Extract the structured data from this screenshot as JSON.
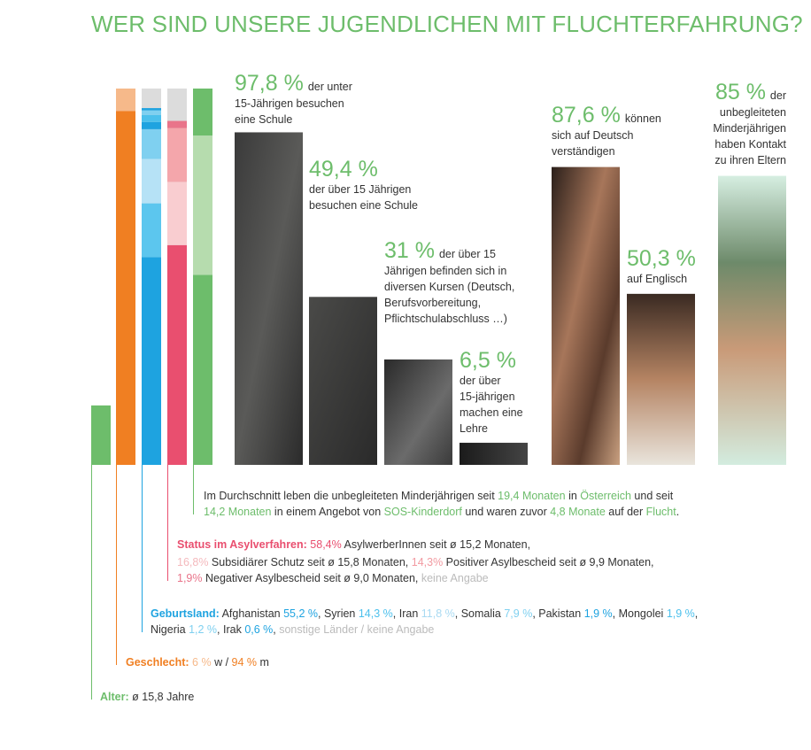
{
  "title": "WER SIND UNSERE JUGENDLICHEN MIT FLUCHTERFAHRUNG?",
  "facts": [
    {
      "value": 97.8,
      "label": "97,8 %",
      "text": "der unter",
      "lines": [
        "15-Jährigen besuchen",
        "eine Schule"
      ]
    },
    {
      "value": 49.4,
      "label": "49,4 %",
      "lines": [
        "der über 15 Jährigen",
        "besuchen eine Schule"
      ]
    },
    {
      "value": 31,
      "label": "31 %",
      "text": "der über 15",
      "lines": [
        "Jährigen befinden sich in",
        "diversen Kursen (Deutsch,",
        "Berufsvorbereitung,",
        "Pflichtschulabschluss …)"
      ]
    },
    {
      "value": 6.5,
      "label": "6,5 %",
      "lines": [
        "der über",
        "15-jährigen",
        "machen eine",
        "Lehre"
      ]
    },
    {
      "value": 87.6,
      "label": "87,6 %",
      "text": "können",
      "lines": [
        "sich auf Deutsch",
        "verständigen"
      ]
    },
    {
      "value": 50.3,
      "label": "50,3 %",
      "lines": [
        "auf Englisch"
      ]
    },
    {
      "value": 85,
      "label": "85 %",
      "text": "der",
      "lines": [
        "unbegleiteten",
        "Minderjährigen",
        "haben Kontakt",
        "zu ihren Eltern"
      ]
    }
  ],
  "blocks": {
    "durchschnitt": {
      "color": "#6dbd6b",
      "lines": [
        [
          "Im Durchschnitt leben die unbegleiteten Minderjährigen seit ",
          {
            "label": "19,4 Monaten",
            "value": 19.4,
            "color": "#6dbd6b"
          },
          " in ",
          {
            "text": "Österreich",
            "color": "#6dbd6b"
          },
          " und seit"
        ],
        [
          {
            "label": "14,2 Monaten",
            "value": 14.2,
            "color": "#6dbd6b",
            "bar_color": "#b6dcae"
          },
          " in einem Angebot von ",
          {
            "text": "SOS-Kinderdorf",
            "color": "#6dbd6b"
          },
          " und waren zuvor ",
          {
            "label": "4,8 Monate",
            "value": 4.8,
            "color": "#6dbd6b"
          },
          " auf der ",
          {
            "text": "Flucht",
            "color": "#6dbd6b"
          },
          "."
        ]
      ]
    },
    "status": {
      "heading": "Status im Asylverfahren:",
      "color": "#e94f6f",
      "lines": [
        [
          " ",
          {
            "label": "58,4%",
            "value": 58.4,
            "color": "#e94f6f"
          },
          " AsylwerberInnen seit ø 15,2 Monaten,"
        ],
        [
          {
            "label": "16,8%",
            "value": 16.8,
            "color": "#f4b9bd",
            "bar_color": "#f9cdd0"
          },
          " Subsidiärer Schutz seit ø 15,8 Monaten, ",
          {
            "label": "14,3%",
            "value": 14.3,
            "color": "#f29aa1",
            "bar_color": "#f4a6ab"
          },
          " Positiver Asylbescheid seit ø 9,9 Monaten,"
        ],
        [
          {
            "label": "1,9%",
            "value": 1.9,
            "color": "#e9748a"
          },
          " Negativer Asylbescheid seit ø 9,0 Monaten, ",
          {
            "text": "keine Angabe",
            "color": "#bbbbbb"
          }
        ]
      ]
    },
    "geburtsland": {
      "heading": "Geburtsland:",
      "color": "#1ea3e0",
      "lines": [
        [
          " Afghanistan ",
          {
            "label": "55,2 %",
            "value": 55.2,
            "color": "#1ea3e0"
          },
          ", Syrien ",
          {
            "label": "14,3 %",
            "value": 14.3,
            "color": "#4cc0ec",
            "bar_color": "#5cc6ee"
          },
          ", Iran ",
          {
            "label": "11,8 %",
            "value": 11.8,
            "color": "#a9daf2",
            "bar_color": "#b6e2f6"
          },
          ", Somalia ",
          {
            "label": "7,9 %",
            "value": 7.9,
            "color": "#7fd0f0"
          },
          ", Pakistan ",
          {
            "label": "1,9 %",
            "value": 1.9,
            "color": "#1ea3e0"
          },
          ", Mongolei ",
          {
            "label": "1,9 %",
            "value": 1.9,
            "color": "#4cc0ec"
          },
          ","
        ],
        [
          "Nigeria ",
          {
            "label": "1,2 %",
            "value": 1.2,
            "color": "#7fd0f0"
          },
          ", Irak ",
          {
            "label": "0,6 %",
            "value": 0.6,
            "color": "#1ea3e0"
          },
          ", ",
          {
            "text": "sonstige Länder / keine Angabe",
            "color": "#bbbbbb"
          }
        ]
      ]
    },
    "geschlecht": {
      "heading": "Geschlecht:",
      "color": "#f07f22",
      "lines": [
        [
          " ",
          {
            "label": "6 %",
            "value": 6,
            "color": "#f6b98a"
          },
          " w / ",
          {
            "label": "94 %",
            "value": 94,
            "color": "#f07f22"
          },
          " m"
        ]
      ]
    },
    "alter": {
      "heading": "Alter:",
      "color": "#6dbd6b",
      "lines": [
        [
          " ø ",
          {
            "label": "15,8",
            "value": 15.8
          },
          " Jahre"
        ]
      ]
    }
  }
}
